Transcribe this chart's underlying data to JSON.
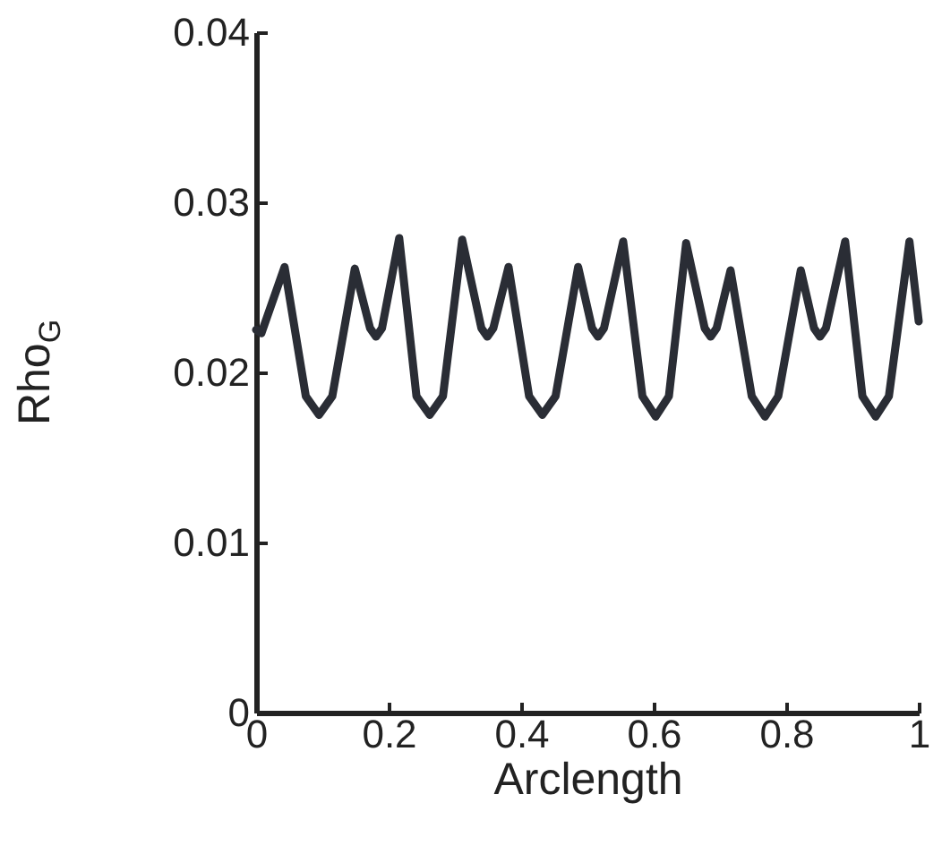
{
  "chart_data": {
    "type": "line",
    "xlabel": "Arclength",
    "ylabel": "Rho$_{G}$",
    "x": [
      0,
      0.008,
      0.043,
      0.075,
      0.095,
      0.115,
      0.149,
      0.172,
      0.181,
      0.19,
      0.216,
      0.242,
      0.262,
      0.282,
      0.311,
      0.34,
      0.349,
      0.358,
      0.381,
      0.412,
      0.432,
      0.452,
      0.486,
      0.507,
      0.516,
      0.525,
      0.554,
      0.583,
      0.603,
      0.623,
      0.649,
      0.677,
      0.686,
      0.695,
      0.716,
      0.748,
      0.768,
      0.788,
      0.822,
      0.842,
      0.851,
      0.86,
      0.889,
      0.915,
      0.935,
      0.955,
      0.986,
      1
    ],
    "series": [
      {
        "color": "#2a2d35",
        "values": [
          0.0225,
          0.0223,
          0.0262,
          0.0186,
          0.0175,
          0.0186,
          0.0261,
          0.0226,
          0.0221,
          0.0226,
          0.0279,
          0.0186,
          0.0175,
          0.0186,
          0.0278,
          0.0226,
          0.0221,
          0.0226,
          0.0262,
          0.0186,
          0.0175,
          0.0186,
          0.0262,
          0.0226,
          0.0221,
          0.0226,
          0.0277,
          0.0186,
          0.0174,
          0.0186,
          0.0276,
          0.0226,
          0.0221,
          0.0226,
          0.026,
          0.0186,
          0.0174,
          0.0186,
          0.026,
          0.0226,
          0.0221,
          0.0226,
          0.0277,
          0.0186,
          0.0174,
          0.0186,
          0.0277,
          0.023
        ]
      }
    ],
    "xlim": [
      0,
      1
    ],
    "xticks": [
      0,
      0.2,
      0.4,
      0.6,
      0.8,
      1
    ],
    "ylim": [
      0,
      0.04
    ],
    "yticks": [
      0,
      0.01,
      0.02,
      0.03,
      0.04
    ],
    "line_style": "solid"
  }
}
